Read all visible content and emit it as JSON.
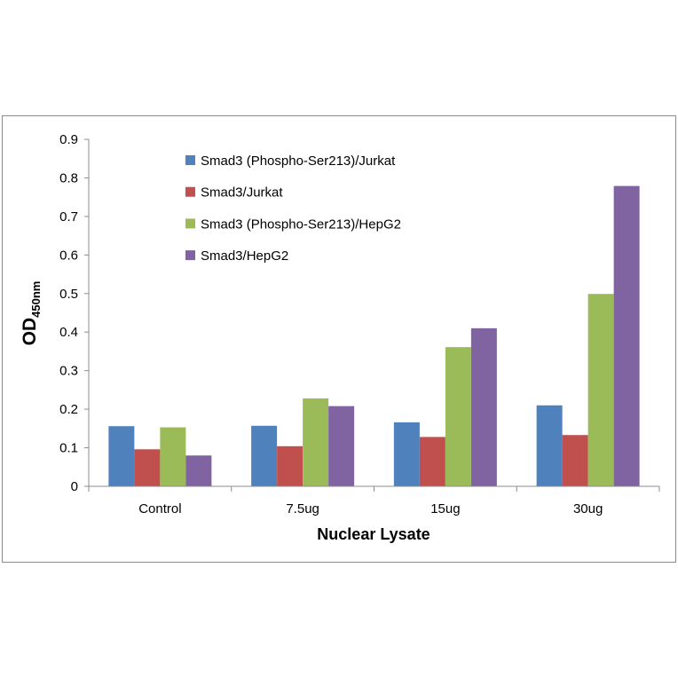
{
  "chart_data": {
    "type": "bar",
    "categories": [
      "Control",
      "7.5ug",
      "15ug",
      "30ug"
    ],
    "series": [
      {
        "name": "Smad3 (Phospho-Ser213)/Jurkat",
        "color": "#4f81bd",
        "values": [
          0.156,
          0.157,
          0.166,
          0.21
        ]
      },
      {
        "name": "Smad3/Jurkat",
        "color": "#c0504d",
        "values": [
          0.096,
          0.104,
          0.128,
          0.133
        ]
      },
      {
        "name": "Smad3 (Phospho-Ser213)/HepG2",
        "color": "#9bbb59",
        "values": [
          0.153,
          0.228,
          0.361,
          0.499
        ]
      },
      {
        "name": "Smad3/HepG2",
        "color": "#8064a2",
        "values": [
          0.08,
          0.208,
          0.41,
          0.779
        ]
      }
    ],
    "yticks": [
      "0",
      "0.1",
      "0.2",
      "0.3",
      "0.4",
      "0.5",
      "0.6",
      "0.7",
      "0.8",
      "0.9"
    ],
    "ylim": [
      0,
      0.9
    ],
    "xlabel": "Nuclear Lysate",
    "ylabel_main": "OD",
    "ylabel_sub": "450nm",
    "legend_position": "top-left",
    "grid": false
  }
}
